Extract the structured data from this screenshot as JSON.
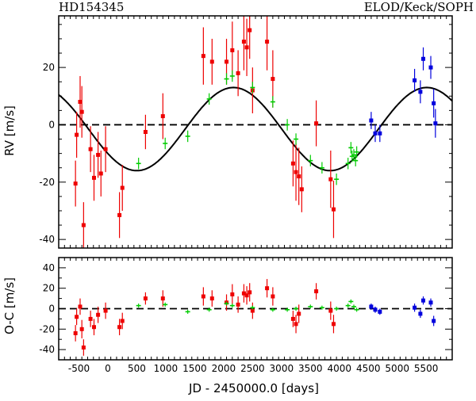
{
  "chart_data": {
    "type": "scatter",
    "title_left": "HD154345",
    "title_right": "ELOD/Keck/SOPH",
    "xlabel": "JD - 2450000.0 [days]",
    "xlim": [
      -850,
      5950
    ],
    "x_ticks": [
      -500,
      0,
      500,
      1000,
      1500,
      2000,
      2500,
      3000,
      3500,
      4000,
      4500,
      5000,
      5500
    ],
    "colors": {
      "ELODIE": "#ee0000",
      "Keck": "#00cc00",
      "SOPHIE": "#0000dd",
      "model": "#000000"
    },
    "panels": [
      {
        "ylabel": "RV [m/s]",
        "ylim": [
          -43,
          38
        ],
        "y_ticks": [
          -40,
          -20,
          0,
          20
        ],
        "model": {
          "type": "sinusoid",
          "period_days": 3340,
          "amplitude": 14.5,
          "t_zero": 500,
          "offset": -1.5
        },
        "zero_line": true,
        "series": [
          {
            "name": "ELODIE",
            "points": [
              [
                -560,
                -20.5,
                8
              ],
              [
                -540,
                -3.5,
                8
              ],
              [
                -480,
                8,
                9
              ],
              [
                -450,
                4.5,
                9
              ],
              [
                -420,
                -35,
                8
              ],
              [
                -300,
                -8.5,
                8
              ],
              [
                -240,
                -18.5,
                8
              ],
              [
                -170,
                -10.5,
                8
              ],
              [
                -120,
                -17,
                8
              ],
              [
                -40,
                -8.5,
                8
              ],
              [
                200,
                -31.5,
                8
              ],
              [
                250,
                -22,
                8
              ],
              [
                650,
                -2.5,
                6
              ],
              [
                950,
                3,
                8
              ],
              [
                1650,
                24,
                10
              ],
              [
                1800,
                22,
                8
              ],
              [
                2050,
                22,
                8
              ],
              [
                2150,
                26,
                10
              ],
              [
                2250,
                18,
                8
              ],
              [
                2350,
                29,
                10
              ],
              [
                2400,
                27,
                10
              ],
              [
                2450,
                33,
                10
              ],
              [
                2500,
                12,
                8
              ],
              [
                2750,
                29,
                10
              ],
              [
                2850,
                16,
                10
              ],
              [
                3200,
                -13.5,
                8
              ],
              [
                3250,
                -16.5,
                10
              ],
              [
                3300,
                -18,
                10
              ],
              [
                3350,
                -22.5,
                8
              ],
              [
                3600,
                0.5,
                8
              ],
              [
                3850,
                -19,
                10
              ],
              [
                3900,
                -29.5,
                10
              ]
            ]
          },
          {
            "name": "Keck",
            "points": [
              [
                530,
                -13.5,
                2
              ],
              [
                990,
                -6.5,
                2
              ],
              [
                1380,
                -4,
                2
              ],
              [
                1750,
                9,
                2
              ],
              [
                2050,
                16,
                2
              ],
              [
                2150,
                17,
                2
              ],
              [
                2500,
                13,
                2
              ],
              [
                2850,
                8,
                2
              ],
              [
                3100,
                0,
                2
              ],
              [
                3250,
                -5,
                2
              ],
              [
                3500,
                -12.5,
                2
              ],
              [
                3700,
                -15,
                2
              ],
              [
                3950,
                -19,
                2
              ],
              [
                4150,
                -13.5,
                2
              ],
              [
                4200,
                -8,
                2
              ],
              [
                4220,
                -11,
                2
              ],
              [
                4250,
                -10.5,
                2
              ],
              [
                4280,
                -12.5,
                2
              ],
              [
                4300,
                -9.5,
                2
              ]
            ]
          },
          {
            "name": "SOPHIE",
            "points": [
              [
                4550,
                1.5,
                3
              ],
              [
                4620,
                -3,
                3
              ],
              [
                4700,
                -3,
                3
              ],
              [
                5300,
                15.5,
                4
              ],
              [
                5400,
                11.5,
                4
              ],
              [
                5450,
                23,
                4
              ],
              [
                5580,
                20,
                4
              ],
              [
                5630,
                7.5,
                5
              ],
              [
                5660,
                0.5,
                5
              ]
            ]
          }
        ]
      },
      {
        "ylabel": "O-C [m/s]",
        "ylim": [
          -50,
          50
        ],
        "y_ticks": [
          -40,
          -20,
          0,
          20,
          40
        ],
        "zero_line": true,
        "series": [
          {
            "name": "ELODIE",
            "points": [
              [
                -560,
                -24,
                8
              ],
              [
                -540,
                -8,
                8
              ],
              [
                -480,
                2,
                8
              ],
              [
                -450,
                -20,
                9
              ],
              [
                -420,
                -38,
                8
              ],
              [
                -300,
                -10,
                8
              ],
              [
                -240,
                -18,
                8
              ],
              [
                -170,
                -6,
                8
              ],
              [
                -40,
                -2,
                8
              ],
              [
                200,
                -18,
                8
              ],
              [
                250,
                -12,
                8
              ],
              [
                650,
                10,
                6
              ],
              [
                950,
                10,
                8
              ],
              [
                1650,
                12,
                9
              ],
              [
                1800,
                10,
                8
              ],
              [
                2050,
                6,
                8
              ],
              [
                2150,
                14,
                10
              ],
              [
                2250,
                4,
                8
              ],
              [
                2350,
                15,
                9
              ],
              [
                2400,
                13,
                9
              ],
              [
                2450,
                16,
                9
              ],
              [
                2500,
                -2,
                8
              ],
              [
                2750,
                20,
                9
              ],
              [
                2850,
                12,
                9
              ],
              [
                3200,
                -10,
                8
              ],
              [
                3250,
                -15,
                9
              ],
              [
                3300,
                -5,
                9
              ],
              [
                3600,
                17,
                8
              ],
              [
                3850,
                -2,
                9
              ],
              [
                3900,
                -15,
                9
              ]
            ]
          },
          {
            "name": "Keck",
            "points": [
              [
                530,
                3,
                2
              ],
              [
                990,
                4,
                2
              ],
              [
                1380,
                -3,
                2
              ],
              [
                1750,
                -1,
                2
              ],
              [
                2050,
                5,
                2
              ],
              [
                2150,
                3,
                2
              ],
              [
                2500,
                1,
                2
              ],
              [
                2850,
                -1,
                2
              ],
              [
                3100,
                -1,
                2
              ],
              [
                3250,
                0,
                2
              ],
              [
                3500,
                2,
                2
              ],
              [
                3700,
                1,
                2
              ],
              [
                3950,
                0,
                2
              ],
              [
                4150,
                3,
                2
              ],
              [
                4200,
                7,
                2
              ],
              [
                4250,
                2,
                2
              ],
              [
                4300,
                -1,
                2
              ]
            ]
          },
          {
            "name": "SOPHIE",
            "points": [
              [
                4550,
                2,
                3
              ],
              [
                4620,
                -1,
                3
              ],
              [
                4700,
                -3,
                3
              ],
              [
                5300,
                1,
                4
              ],
              [
                5400,
                -5,
                4
              ],
              [
                5450,
                8,
                4
              ],
              [
                5580,
                6,
                4
              ],
              [
                5630,
                -12,
                5
              ]
            ]
          }
        ]
      }
    ]
  }
}
